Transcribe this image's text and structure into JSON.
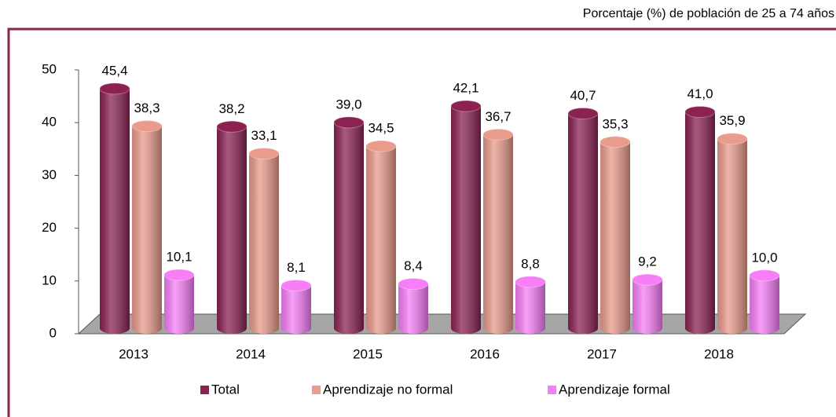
{
  "chart_data": {
    "type": "bar",
    "subtitle": "Porcentaje (%) de población de 25 a 74 años",
    "categories": [
      "2013",
      "2014",
      "2015",
      "2016",
      "2017",
      "2018"
    ],
    "series": [
      {
        "name": "Total",
        "color": "#8b2252",
        "values": [
          45.4,
          38.2,
          39.0,
          42.1,
          40.7,
          41.0
        ],
        "value_labels": [
          "45,4",
          "38,2",
          "39,0",
          "42,1",
          "40,7",
          "41,0"
        ]
      },
      {
        "name": "Aprendizaje no formal",
        "color": "#e99b8c",
        "values": [
          38.3,
          33.1,
          34.5,
          36.7,
          35.3,
          35.9
        ],
        "value_labels": [
          "38,3",
          "33,1",
          "34,5",
          "36,7",
          "35,3",
          "35,9"
        ]
      },
      {
        "name": "Aprendizaje formal",
        "color": "#f77ef7",
        "values": [
          10.1,
          8.1,
          8.4,
          8.8,
          9.2,
          10.0
        ],
        "value_labels": [
          "10,1",
          "8,1",
          "8,4",
          "8,8",
          "9,2",
          "10,0"
        ]
      }
    ],
    "ylim": [
      0,
      50
    ],
    "yticks": [
      0,
      10,
      20,
      30,
      40,
      50
    ]
  }
}
